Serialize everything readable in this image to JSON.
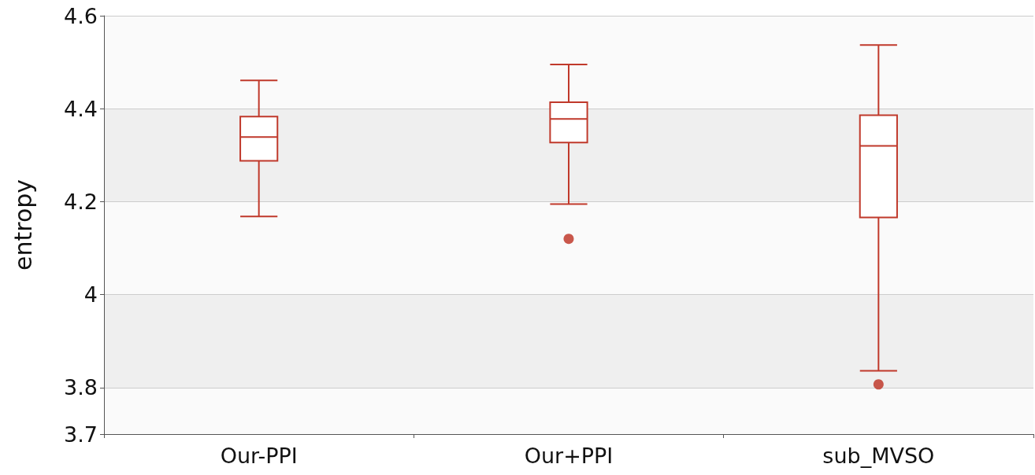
{
  "chart_data": {
    "type": "box",
    "ylabel": "entropy",
    "categories": [
      "Our-PPI",
      "Our+PPI",
      "sub_MVSO"
    ],
    "series": [
      {
        "color": "#c0392b",
        "boxes": [
          {
            "low": 4.168,
            "q1": 4.288,
            "median": 4.339,
            "q3": 4.383,
            "high": 4.461
          },
          {
            "low": 4.195,
            "q1": 4.327,
            "median": 4.378,
            "q3": 4.414,
            "high": 4.495,
            "outliers": [
              4.12
            ]
          },
          {
            "low": 3.836,
            "q1": 4.166,
            "median": 4.32,
            "q3": 4.386,
            "high": 4.537,
            "outliers": [
              3.807
            ]
          }
        ]
      }
    ],
    "ylim": [
      3.7,
      4.6
    ],
    "yticks": [
      3.7,
      3.8,
      4,
      4.2,
      4.4,
      4.6
    ],
    "grid": "y"
  }
}
